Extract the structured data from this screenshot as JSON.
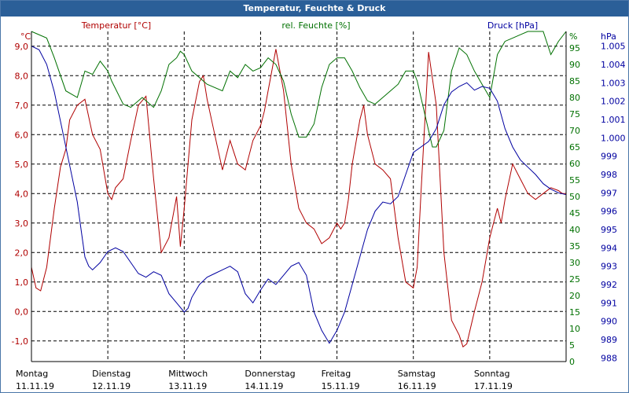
{
  "title": "Temperatur, Feuchte & Druck",
  "chart_data": {
    "type": "line",
    "title": "Temperatur, Feuchte & Druck",
    "colors": {
      "temp": "#b00000",
      "hum": "#007000",
      "press": "#0000a0",
      "grid": "#000000",
      "title_bg": "#2b5f98"
    },
    "axes": {
      "temp": {
        "label": "Temperatur [°C]",
        "unit": "°C",
        "ylim": [
          -1.7,
          9.5
        ],
        "ticks": [
          "-1,0",
          "0,0",
          "1,0",
          "2,0",
          "3,0",
          "4,0",
          "5,0",
          "6,0",
          "7,0",
          "8,0",
          "9,0"
        ]
      },
      "hum": {
        "label": "rel. Feuchte [%]",
        "unit": "%",
        "ylim": [
          0,
          100
        ],
        "ticks": [
          "0",
          "5",
          "10",
          "15",
          "20",
          "25",
          "30",
          "35",
          "40",
          "45",
          "50",
          "55",
          "60",
          "65",
          "70",
          "75",
          "80",
          "85",
          "90",
          "95"
        ]
      },
      "press": {
        "label": "Druck [hPa]",
        "unit": "hPa",
        "ylim": [
          987.8,
          1005.8
        ],
        "ticks": [
          "988",
          "989",
          "990",
          "991",
          "992",
          "993",
          "994",
          "995",
          "996",
          "997",
          "998",
          "999",
          "1.000",
          "1.001",
          "1.002",
          "1.003",
          "1.004",
          "1.005"
        ]
      }
    },
    "x_range": [
      0,
      7
    ],
    "days": [
      {
        "name": "Montag",
        "date": "11.11.19"
      },
      {
        "name": "Dienstag",
        "date": "12.11.19"
      },
      {
        "name": "Mittwoch",
        "date": "13.11.19"
      },
      {
        "name": "Donnerstag",
        "date": "14.11.19"
      },
      {
        "name": "Freitag",
        "date": "15.11.19"
      },
      {
        "name": "Samstag",
        "date": "16.11.19"
      },
      {
        "name": "Sonntag",
        "date": "17.11.19"
      }
    ],
    "series": [
      {
        "name": "Temperatur",
        "axis": "temp",
        "x": [
          0,
          0.06,
          0.12,
          0.2,
          0.3,
          0.38,
          0.45,
          0.5,
          0.6,
          0.7,
          0.8,
          0.9,
          1.0,
          1.05,
          1.1,
          1.2,
          1.3,
          1.4,
          1.5,
          1.6,
          1.7,
          1.8,
          1.9,
          1.95,
          2.0,
          2.1,
          2.2,
          2.25,
          2.3,
          2.4,
          2.5,
          2.6,
          2.7,
          2.8,
          2.9,
          3.0,
          3.05,
          3.1,
          3.2,
          3.3,
          3.4,
          3.5,
          3.6,
          3.7,
          3.8,
          3.9,
          4.0,
          4.05,
          4.1,
          4.15,
          4.2,
          4.3,
          4.35,
          4.4,
          4.5,
          4.6,
          4.7,
          4.8,
          4.9,
          5.0,
          5.05,
          5.1,
          5.2,
          5.3,
          5.4,
          5.5,
          5.6,
          5.65,
          5.7,
          5.8,
          5.9,
          6.0,
          6.05,
          6.1,
          6.15,
          6.2,
          6.3,
          6.4,
          6.5,
          6.55,
          6.6,
          6.7,
          6.8,
          6.9,
          6.95,
          7.0
        ],
        "values": [
          1.5,
          0.8,
          0.7,
          1.5,
          3.5,
          4.9,
          5.5,
          6.5,
          7.0,
          7.2,
          6.0,
          5.5,
          4.0,
          3.8,
          4.2,
          4.5,
          5.8,
          7.0,
          7.3,
          4.5,
          2.0,
          2.5,
          3.9,
          2.2,
          3.5,
          6.5,
          7.8,
          8.0,
          7.2,
          6.0,
          4.8,
          5.8,
          5.0,
          4.8,
          5.8,
          6.3,
          6.8,
          7.5,
          8.9,
          7.5,
          5.0,
          3.5,
          3.0,
          2.8,
          2.3,
          2.5,
          3.0,
          2.8,
          3.0,
          3.8,
          5.0,
          6.5,
          7.0,
          6.0,
          5.0,
          4.8,
          4.5,
          2.5,
          1.0,
          0.8,
          1.5,
          4.0,
          8.8,
          7.0,
          2.0,
          -0.3,
          -0.8,
          -1.2,
          -1.1,
          0.0,
          1.0,
          2.5,
          3.0,
          3.5,
          3.0,
          3.8,
          5.0,
          4.5,
          4.0,
          3.9,
          3.8,
          4.0,
          4.2,
          4.1,
          4.0,
          4.0
        ]
      },
      {
        "name": "rel. Feuchte",
        "axis": "hum",
        "x": [
          0,
          0.2,
          0.3,
          0.45,
          0.6,
          0.7,
          0.8,
          0.9,
          1.0,
          1.05,
          1.2,
          1.3,
          1.45,
          1.6,
          1.7,
          1.8,
          1.9,
          1.95,
          2.0,
          2.1,
          2.2,
          2.3,
          2.5,
          2.6,
          2.7,
          2.8,
          2.9,
          3.0,
          3.1,
          3.2,
          3.3,
          3.4,
          3.5,
          3.6,
          3.7,
          3.8,
          3.9,
          4.0,
          4.1,
          4.2,
          4.3,
          4.4,
          4.5,
          4.6,
          4.7,
          4.8,
          4.9,
          5.0,
          5.05,
          5.1,
          5.2,
          5.25,
          5.3,
          5.4,
          5.5,
          5.6,
          5.7,
          5.8,
          5.9,
          6.0,
          6.1,
          6.15,
          6.2,
          6.3,
          6.4,
          6.5,
          6.55,
          6.6,
          6.65,
          6.7,
          6.8,
          6.9,
          7.0
        ],
        "values": [
          100,
          98,
          92,
          82,
          80,
          88,
          87,
          91,
          88,
          85,
          78,
          77,
          80,
          77,
          82,
          90,
          92,
          94,
          93,
          88,
          86,
          84,
          82,
          88,
          86,
          90,
          88,
          89,
          92,
          90,
          85,
          75,
          68,
          68,
          72,
          83,
          90,
          92,
          92,
          88,
          83,
          79,
          78,
          80,
          82,
          84,
          88,
          88,
          85,
          80,
          70,
          65,
          65,
          70,
          88,
          95,
          93,
          88,
          84,
          80,
          93,
          95,
          97,
          98,
          99,
          100,
          100,
          100,
          100,
          100,
          93,
          97,
          100
        ]
      },
      {
        "name": "Druck",
        "axis": "press",
        "x": [
          0,
          0.1,
          0.2,
          0.3,
          0.4,
          0.5,
          0.6,
          0.65,
          0.7,
          0.75,
          0.8,
          0.9,
          1.0,
          1.1,
          1.2,
          1.3,
          1.4,
          1.5,
          1.6,
          1.7,
          1.8,
          1.9,
          2.0,
          2.05,
          2.1,
          2.2,
          2.3,
          2.4,
          2.5,
          2.6,
          2.7,
          2.8,
          2.9,
          3.0,
          3.1,
          3.2,
          3.3,
          3.4,
          3.5,
          3.6,
          3.7,
          3.8,
          3.9,
          4.0,
          4.1,
          4.2,
          4.3,
          4.4,
          4.5,
          4.6,
          4.7,
          4.8,
          4.9,
          5.0,
          5.1,
          5.2,
          5.3,
          5.4,
          5.5,
          5.6,
          5.7,
          5.8,
          5.9,
          6.0,
          6.1,
          6.2,
          6.3,
          6.4,
          6.5,
          6.6,
          6.7,
          6.8,
          6.9,
          7.0
        ],
        "values": [
          1005.0,
          1004.8,
          1004.0,
          1002.5,
          1000.5,
          998.5,
          996.5,
          995.0,
          993.5,
          993.0,
          992.8,
          993.2,
          993.8,
          994.0,
          993.8,
          993.2,
          992.6,
          992.4,
          992.7,
          992.5,
          991.5,
          991.0,
          990.5,
          990.7,
          991.3,
          992.0,
          992.4,
          992.6,
          992.8,
          993.0,
          992.7,
          991.5,
          991.0,
          991.7,
          992.3,
          992.0,
          992.5,
          993.0,
          993.2,
          992.5,
          990.5,
          989.5,
          988.8,
          989.5,
          990.5,
          992.0,
          993.5,
          995.0,
          996.0,
          996.5,
          996.4,
          996.8,
          998.0,
          999.2,
          999.5,
          999.8,
          1000.5,
          1001.8,
          1002.5,
          1002.8,
          1003.0,
          1002.6,
          1002.8,
          1002.7,
          1002.0,
          1000.5,
          999.5,
          998.8,
          998.4,
          998.0,
          997.5,
          997.2,
          997.0,
          996.9
        ]
      }
    ]
  }
}
